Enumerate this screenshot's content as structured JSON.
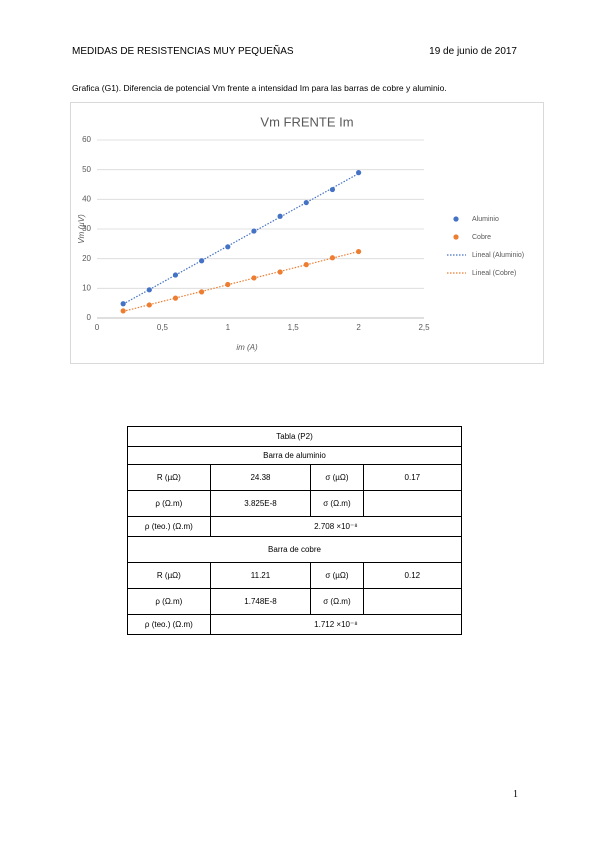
{
  "header": {
    "title": "MEDIDAS DE RESISTENCIAS MUY PEQUEÑAS",
    "date": "19 de junio de 2017"
  },
  "caption": "Grafica (G1). Diferencia de potencial Vm frente a intensidad Im para las barras de cobre y aluminio.",
  "chart_data": {
    "type": "scatter",
    "title": "Vm FRENTE Im",
    "x_label": "im (A)",
    "y_label": "Vm (µV)",
    "x": [
      0.2,
      0.4,
      0.6,
      0.8,
      1.0,
      1.2,
      1.4,
      1.6,
      1.8,
      2.0
    ],
    "series": [
      {
        "name": "Aluminio",
        "trendline": "Lineal (Aluminio)",
        "color": "#4472c4",
        "values": [
          4.8,
          9.5,
          14.5,
          19.3,
          24.0,
          29.3,
          34.3,
          38.9,
          43.3,
          49.0
        ]
      },
      {
        "name": "Cobre",
        "trendline": "Lineal (Cobre)",
        "color": "#ed7d31",
        "values": [
          2.4,
          4.4,
          6.7,
          8.8,
          11.3,
          13.5,
          15.5,
          18.0,
          20.3,
          22.4
        ]
      }
    ],
    "xlim": [
      0,
      2.5
    ],
    "xticks": [
      0,
      {
        "value": 0.5,
        "label": "0,5"
      },
      1,
      {
        "value": 1.5,
        "label": "1,5"
      },
      2,
      {
        "value": 2.5,
        "label": "2,5"
      }
    ],
    "ylim": [
      0,
      60
    ],
    "yticks": [
      0,
      10,
      20,
      30,
      40,
      50,
      60
    ],
    "grid": true,
    "legend": "right"
  },
  "table": {
    "title": "Tabla (P2)",
    "sections": [
      {
        "name": "Barra de aluminio",
        "rows": [
          [
            "R (µΩ)",
            "24.38",
            "σ (µΩ)",
            "0.17"
          ],
          [
            "ρ (Ω.m)",
            "3.825E-8",
            "σ (Ω.m)"
          ],
          [
            "ρ (teo.) (Ω.m)",
            "2.708 ×10⁻⁸"
          ]
        ]
      },
      {
        "name": "Barra de cobre",
        "rows": [
          [
            "R (µΩ)",
            "11.21",
            "σ (µΩ)",
            "0.12"
          ],
          [
            "ρ (Ω.m)",
            "1.748E-8",
            "σ (Ω.m)"
          ],
          [
            "ρ (teo.) (Ω.m)",
            "1.712 ×10⁻⁸"
          ]
        ]
      }
    ]
  },
  "page_number": "1"
}
